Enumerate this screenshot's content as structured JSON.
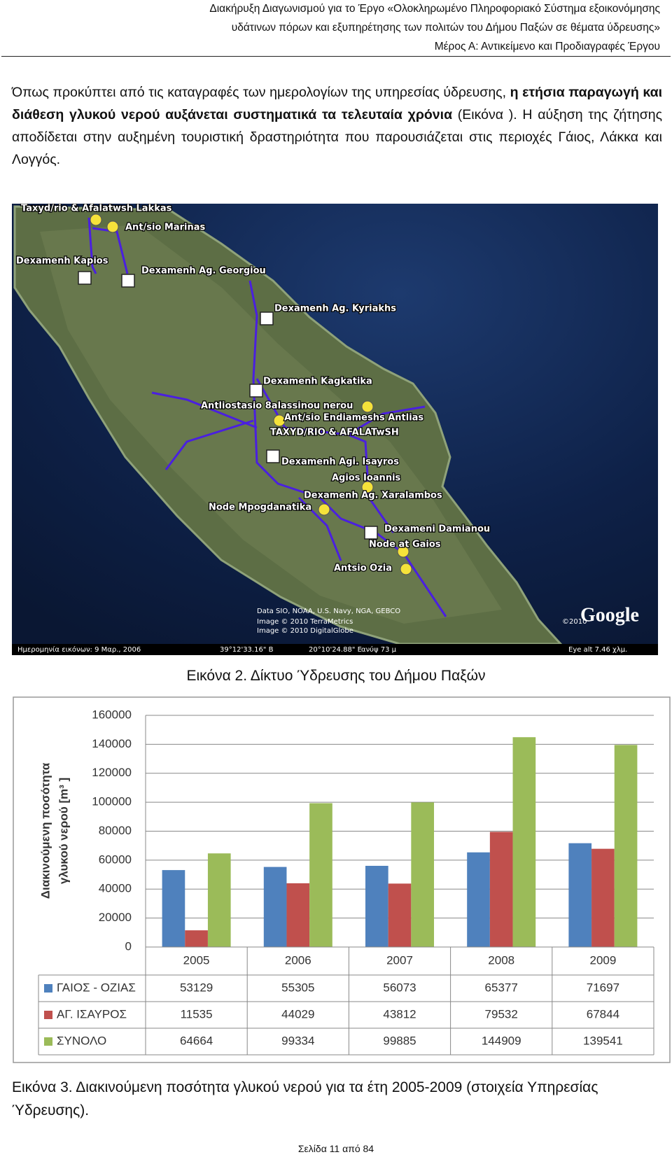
{
  "header": {
    "lines": [
      "Διακήρυξη Διαγωνισμού για το Έργο «Ολοκληρωμένο Πληροφοριακό Σύστημα εξοικονόμησης",
      "υδάτινων πόρων και εξυπηρέτησης των πολιτών του Δήμου Παξών σε θέματα ύδρευσης»",
      "Μέρος Α: Αντικείμενο και Προδιαγραφές Έργου"
    ]
  },
  "paragraph": {
    "before": "Όπως προκύπτει από τις καταγραφές των ημερολογίων της υπηρεσίας ύδρευσης, ",
    "bold": "η ετήσια παραγωγή και διάθεση γλυκού νερού αυξάνεται συστηματικά τα τελευταία χρόνια",
    "after": " (Εικόνα ). Η αύξηση της ζήτησης αποδίδεται στην αυξημένη τουριστική δραστηριότητα που παρουσιάζεται στις περιοχές Γάιος, Λάκκα και Λογγός."
  },
  "map": {
    "labels": [
      "Taxyd/rio & Afalatwsh Lakkas",
      "Ant/sio Marinas",
      "Dexamenh Kapios",
      "Dexamenh Ag. Georgiou",
      "Dexamenh Ag. Kyriakhs",
      "Dexamenh Kagkatika",
      "Antliostasio 8alassinou nerou",
      "Ant/sio Endiameshs Antlias",
      "TAXYD/RIO & AFALATwSH",
      "Dexamenh Agi. Isayros",
      "Agios Ioannis",
      "Dexamenh Ag. Xaralambos",
      "Node Mpogdanatika",
      "Dexameni Damianou",
      "Node at Gaios",
      "Antsio Ozia"
    ],
    "credits": [
      "Data SIO, NOAA, U.S. Navy, NGA, GEBCO",
      "Image © 2010 TerraMetrics",
      "Image © 2010 DigitalGlobe"
    ],
    "copyright": "©2010",
    "logo": "Google",
    "footer": [
      "Ημερομηνία εικόνων: 9 Μαρ., 2006",
      "39°12'33.16\" Β",
      "20°10'24.88\" Ε",
      "ανύψ 73 μ",
      "Eye alt 7.46 χλμ."
    ]
  },
  "caption_map": "Εικόνα 2. Δίκτυο Ύδρευσης του Δήμου Παξών",
  "chart_data": {
    "type": "bar",
    "y_label": [
      "Διακινούμενη ποσότητα",
      "γλυκού νερού [m³ ]"
    ],
    "categories": [
      "2005",
      "2006",
      "2007",
      "2008",
      "2009"
    ],
    "series": [
      {
        "name": "ΓΑΙΟΣ - ΟΖΙΑΣ",
        "color": "#4f81bd",
        "values": [
          53129,
          55305,
          56073,
          65377,
          71697
        ]
      },
      {
        "name": "ΑΓ. ΙΣΑΥΡΟΣ",
        "color": "#c0504d",
        "values": [
          11535,
          44029,
          43812,
          79532,
          67844
        ]
      },
      {
        "name": "ΣΥΝΟΛΟ",
        "color": "#9bbb59",
        "values": [
          64664,
          99334,
          99885,
          144909,
          139541
        ]
      }
    ],
    "ylim": [
      0,
      160000
    ],
    "yticks": [
      0,
      20000,
      40000,
      60000,
      80000,
      100000,
      120000,
      140000,
      160000
    ],
    "grid": true,
    "data_table": true
  },
  "caption_chart": "Εικόνα 3. Διακινούμενη ποσότητα γλυκού νερού για τα έτη 2005-2009 (στοιχεία Υπηρεσίας Ύδρευσης).",
  "footer": "Σελίδα 11 από 84"
}
